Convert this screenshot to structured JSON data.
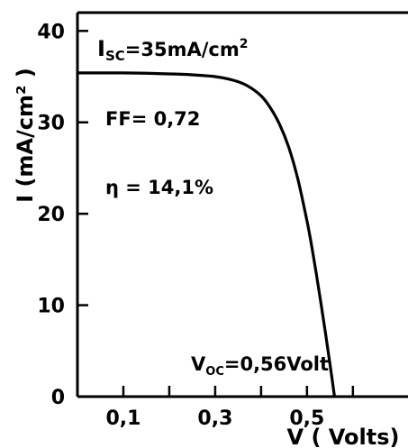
{
  "chart_data": {
    "type": "line",
    "title": "",
    "xlabel": "V ( Volts)",
    "ylabel": "I (mA/cm² )",
    "xlim": [
      0,
      0.72
    ],
    "ylim": [
      0,
      42
    ],
    "x_ticks": [
      {
        "value": 0.1,
        "label": "0,1"
      },
      {
        "value": 0.3,
        "label": "0,3"
      },
      {
        "value": 0.5,
        "label": "0,5"
      }
    ],
    "x_minor_ticks": [
      0.2,
      0.4,
      0.6
    ],
    "y_ticks": [
      {
        "value": 0,
        "label": "0"
      },
      {
        "value": 10,
        "label": "10"
      },
      {
        "value": 20,
        "label": "20"
      },
      {
        "value": 30,
        "label": "30"
      },
      {
        "value": 40,
        "label": "40"
      }
    ],
    "series": [
      {
        "x": [
          0.0,
          0.1,
          0.2,
          0.25,
          0.3,
          0.34,
          0.37,
          0.4,
          0.42,
          0.44,
          0.46,
          0.48,
          0.5,
          0.51,
          0.52,
          0.53,
          0.54,
          0.55,
          0.555,
          0.56
        ],
        "y": [
          35.4,
          35.4,
          35.3,
          35.2,
          35.0,
          34.6,
          34.0,
          32.9,
          31.6,
          29.8,
          27.3,
          23.8,
          19.2,
          16.5,
          13.5,
          10.3,
          7.0,
          3.6,
          1.8,
          0.0
        ]
      }
    ],
    "annotations": {
      "isc": {
        "I": "I",
        "sub": "SC",
        "rest": "=35mA/cm",
        "sup": "2"
      },
      "ff": "FF= 0,72",
      "eta": "η = 14,1%",
      "voc": {
        "V": "V",
        "sub": "OC",
        "rest": "=0,56Volt"
      }
    },
    "grid": false
  }
}
